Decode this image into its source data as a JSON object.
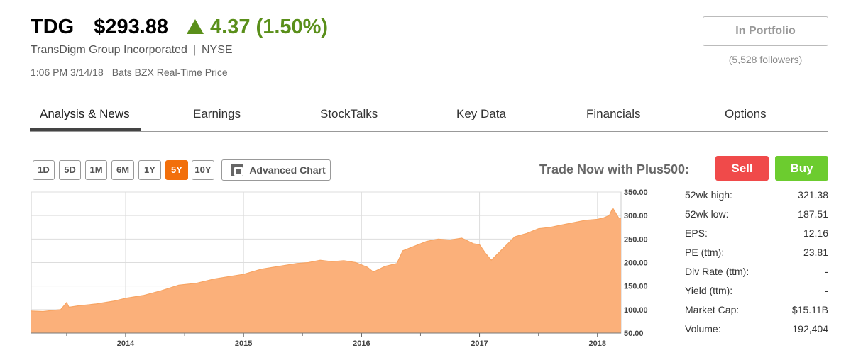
{
  "quote": {
    "ticker": "TDG",
    "price": "$293.88",
    "change": "4.37 (1.50%)",
    "direction": "up",
    "up_color": "#5a8f1a",
    "company": "TransDigm Group Incorporated",
    "separator": "|",
    "exchange": "NYSE",
    "time": "1:06 PM 3/14/18",
    "price_source": "Bats BZX Real-Time Price"
  },
  "portfolio": {
    "button_label": "In Portfolio",
    "followers": "(5,528 followers)"
  },
  "tabs": [
    {
      "label": "Analysis & News",
      "active": true
    },
    {
      "label": "Earnings",
      "active": false
    },
    {
      "label": "StockTalks",
      "active": false
    },
    {
      "label": "Key Data",
      "active": false
    },
    {
      "label": "Financials",
      "active": false
    },
    {
      "label": "Options",
      "active": false
    }
  ],
  "chart_controls": {
    "ranges": [
      "1D",
      "5D",
      "1M",
      "6M",
      "1Y",
      "5Y",
      "10Y"
    ],
    "selected_range": "5Y",
    "advanced_label": "Advanced Chart",
    "advanced_icon": "expand-icon"
  },
  "trade": {
    "label": "Trade Now with Plus500:",
    "sell_label": "Sell",
    "buy_label": "Buy",
    "sell_color": "#f04a4a",
    "buy_color": "#6ccc2f"
  },
  "stats": [
    {
      "label": "52wk high:",
      "value": "321.38"
    },
    {
      "label": "52wk low:",
      "value": "187.51"
    },
    {
      "label": "EPS:",
      "value": "12.16"
    },
    {
      "label": "PE (ttm):",
      "value": "23.81"
    },
    {
      "label": "Div Rate (ttm):",
      "value": "-"
    },
    {
      "label": "Yield (ttm):",
      "value": "-"
    },
    {
      "label": "Market Cap:",
      "value": "$15.11B"
    },
    {
      "label": "Volume:",
      "value": "192,404"
    }
  ],
  "chart_data": {
    "type": "area",
    "fill_color": "#fbb07a",
    "line_color": "#f7a463",
    "ylim": [
      50,
      350
    ],
    "yticks": [
      "350.00",
      "300.00",
      "250.00",
      "200.00",
      "150.00",
      "100.00",
      "50.00"
    ],
    "xticks": [
      "2014",
      "2015",
      "2016",
      "2017",
      "2018"
    ],
    "xlim": [
      2013.2,
      2018.2
    ],
    "grid": true,
    "series": [
      {
        "x": [
          2013.2,
          2013.3,
          2013.45,
          2013.5,
          2013.52,
          2013.6,
          2013.75,
          2013.9,
          2014.0,
          2014.15,
          2014.3,
          2014.45,
          2014.6,
          2014.75,
          2014.9,
          2015.0,
          2015.15,
          2015.3,
          2015.45,
          2015.55,
          2015.65,
          2015.75,
          2015.85,
          2015.95,
          2016.05,
          2016.1,
          2016.2,
          2016.3,
          2016.35,
          2016.45,
          2016.55,
          2016.65,
          2016.75,
          2016.85,
          2016.95,
          2017.0,
          2017.05,
          2017.1,
          2017.2,
          2017.3,
          2017.4,
          2017.5,
          2017.6,
          2017.7,
          2017.8,
          2017.9,
          2018.0,
          2018.05,
          2018.1,
          2018.13,
          2018.18,
          2018.2
        ],
        "y": [
          97,
          96,
          100,
          115,
          105,
          108,
          112,
          118,
          124,
          130,
          140,
          152,
          156,
          165,
          171,
          175,
          186,
          192,
          198,
          200,
          205,
          202,
          204,
          200,
          190,
          180,
          192,
          198,
          225,
          235,
          245,
          250,
          248,
          252,
          240,
          238,
          220,
          205,
          230,
          255,
          262,
          272,
          275,
          280,
          285,
          290,
          292,
          295,
          300,
          316,
          295,
          294
        ]
      }
    ]
  }
}
